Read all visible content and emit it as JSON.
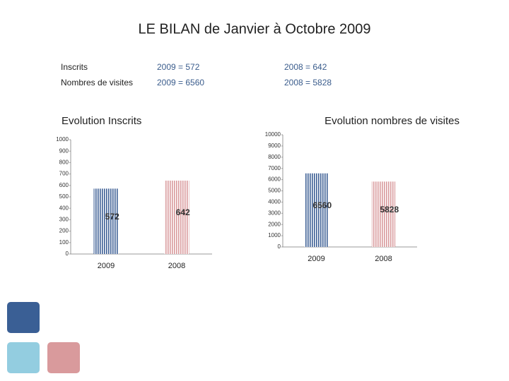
{
  "title": "LE BILAN de Janvier à Octobre 2009",
  "stats": [
    [
      "Inscrits",
      "2009 = 572",
      "2008 = 642"
    ],
    [
      "Nombres de visites",
      "2009  = 6560",
      "2008 = 5828"
    ]
  ],
  "chart_data": [
    {
      "type": "bar",
      "title": "Evolution Inscrits",
      "categories": [
        "2009",
        "2008"
      ],
      "values": [
        572,
        642
      ],
      "colors": [
        "#3d5f95",
        "#d99a9c"
      ],
      "ylim": [
        0,
        1000
      ],
      "yticks": [
        0,
        100,
        200,
        300,
        400,
        500,
        600,
        700,
        800,
        900,
        1000
      ]
    },
    {
      "type": "bar",
      "title": "Evolution nombres de visites",
      "categories": [
        "2009",
        "2008"
      ],
      "values": [
        6560,
        5828
      ],
      "colors": [
        "#3d5f95",
        "#d99a9c"
      ],
      "ylim": [
        0,
        10000
      ],
      "yticks": [
        0,
        1000,
        2000,
        3000,
        4000,
        5000,
        6000,
        7000,
        8000,
        9000,
        10000
      ]
    }
  ]
}
